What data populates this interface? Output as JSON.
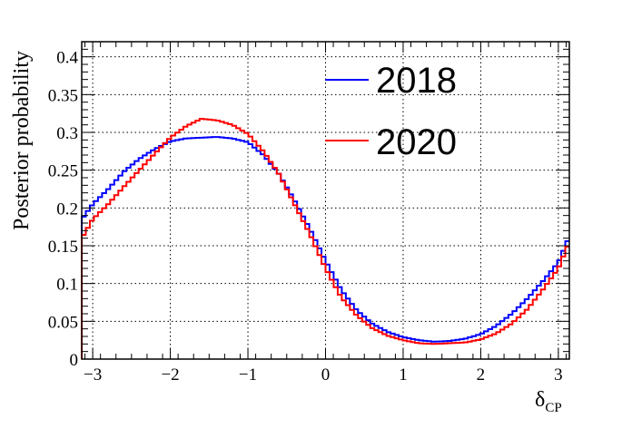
{
  "chart_data": {
    "type": "line",
    "title": "",
    "xlabel": "δ_CP",
    "xlabel_main": "δ",
    "xlabel_sub": "CP",
    "ylabel": "Posterior probability",
    "xlim": [
      -3.1416,
      3.1416
    ],
    "ylim": [
      0,
      0.42
    ],
    "grid": true,
    "legend_position": "top-right",
    "x_ticks": [
      -3,
      -2,
      -1,
      0,
      1,
      2,
      3
    ],
    "x_tick_labels": [
      "−3",
      "−2",
      "−1",
      "0",
      "1",
      "2",
      "3"
    ],
    "y_ticks": [
      0,
      0.05,
      0.1,
      0.15,
      0.2,
      0.25,
      0.3,
      0.35,
      0.4
    ],
    "y_tick_labels": [
      "0",
      "0.05",
      "0.1",
      "0.15",
      "0.2",
      "0.25",
      "0.3",
      "0.35",
      "0.4"
    ],
    "series": [
      {
        "name": "2018",
        "color": "#0000ff",
        "x": [
          -3.14,
          -3.0,
          -2.8,
          -2.6,
          -2.4,
          -2.2,
          -2.0,
          -1.8,
          -1.6,
          -1.4,
          -1.2,
          -1.0,
          -0.8,
          -0.6,
          -0.4,
          -0.2,
          0.0,
          0.2,
          0.4,
          0.6,
          0.8,
          1.0,
          1.2,
          1.4,
          1.6,
          1.8,
          2.0,
          2.2,
          2.4,
          2.6,
          2.8,
          3.0,
          3.14
        ],
        "y": [
          0.185,
          0.205,
          0.225,
          0.248,
          0.265,
          0.278,
          0.288,
          0.292,
          0.293,
          0.294,
          0.292,
          0.287,
          0.27,
          0.245,
          0.21,
          0.172,
          0.13,
          0.092,
          0.065,
          0.047,
          0.036,
          0.029,
          0.025,
          0.023,
          0.024,
          0.027,
          0.033,
          0.044,
          0.06,
          0.08,
          0.103,
          0.128,
          0.162
        ]
      },
      {
        "name": "2020",
        "color": "#ff0000",
        "x": [
          -3.14,
          -3.0,
          -2.8,
          -2.6,
          -2.4,
          -2.2,
          -2.0,
          -1.8,
          -1.6,
          -1.4,
          -1.2,
          -1.0,
          -0.8,
          -0.6,
          -0.4,
          -0.2,
          0.0,
          0.2,
          0.4,
          0.6,
          0.8,
          1.0,
          1.2,
          1.4,
          1.6,
          1.8,
          2.0,
          2.2,
          2.4,
          2.6,
          2.8,
          3.0,
          3.14
        ],
        "y": [
          0.16,
          0.185,
          0.205,
          0.228,
          0.25,
          0.272,
          0.293,
          0.308,
          0.318,
          0.316,
          0.31,
          0.298,
          0.275,
          0.245,
          0.205,
          0.165,
          0.12,
          0.082,
          0.058,
          0.041,
          0.031,
          0.025,
          0.021,
          0.02,
          0.021,
          0.022,
          0.026,
          0.034,
          0.047,
          0.066,
          0.092,
          0.12,
          0.155
        ]
      }
    ]
  }
}
